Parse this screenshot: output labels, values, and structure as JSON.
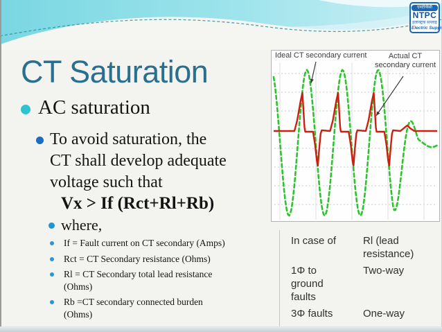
{
  "logo": {
    "hindi_name": "एनटीपीसी",
    "name": "NTPC",
    "hindi_tagline": "इलेक्ट्रिक सप्लाई",
    "tagline": "Electric Supply"
  },
  "title": "CT Saturation",
  "bullets": {
    "level1": "AC saturation",
    "level2": "To avoid saturation, the\nCT shall develop adequate\nvoltage such that",
    "formula": "Vx > If (Rct+Rl+Rb)",
    "where_label": "where,",
    "definitions": [
      "If = Fault current on CT secondary (Amps)",
      "Rct = CT Secondary resistance (Ohms)",
      "Rl = CT Secondary total lead resistance\n(Ohms)",
      "Rb =CT secondary connected burden\n(Ohms)"
    ]
  },
  "chart_data": {
    "type": "line",
    "title": "",
    "xlabel": "",
    "ylabel": "",
    "description": "Qualitative waveform comparison: ideal CT secondary current is a symmetric decaying sine; actual CT secondary current collapses to zero after short spikes due to CT saturation. No numeric axes shown; coordinates are plot pixels (242x246).",
    "units": "px",
    "zero_line_y": 115,
    "grid": {
      "h_dotted_y": [
        33,
        60,
        87,
        141,
        168,
        195,
        222
      ],
      "v_solid_x": [
        12,
        64,
        116,
        168,
        220
      ]
    },
    "series": [
      {
        "name": "Ideal CT secondary current",
        "color": "#2cc32c",
        "style": "dashed",
        "shape": "sine",
        "amplitude": 105,
        "dc_offset": 18,
        "period": 51.5,
        "rising_zero_x": 38,
        "decay_start_x": 176,
        "decay_end_x": 212,
        "decay_final": 0.06,
        "x_range": [
          3,
          239
        ]
      },
      {
        "name": "Actual CT secondary current",
        "color": "#cc1f10",
        "style": "solid",
        "shape": "saturated-spikes",
        "baseline": 116,
        "up_spikes_x": [
          38,
          89.5,
          141
        ],
        "up_peak": 61,
        "down_spikes_x": [
          63.75,
          115.25,
          166.75
        ],
        "down_peak": 166,
        "end_ripple": {
          "from": 186,
          "to": 206,
          "peak_y": 108
        },
        "x_range": [
          3,
          239
        ]
      }
    ],
    "annotations": [
      {
        "text": "Ideal CT secondary current"
      },
      {
        "text": "Actual CT\nsecondary current"
      }
    ],
    "arrows": [
      {
        "from": [
          64,
          16
        ],
        "to": [
          57,
          47
        ]
      },
      {
        "from": [
          190,
          37
        ],
        "to": [
          151,
          94
        ]
      }
    ],
    "legend": "annotated labels with arrows, top of plot"
  },
  "table": {
    "header": [
      "In case of",
      "Rl (lead\nresistance)"
    ],
    "rows": [
      [
        "1Φ to\nground\nfaults",
        "Two-way"
      ],
      [
        "3Φ faults",
        "One-way"
      ]
    ]
  },
  "colors": {
    "title_teal": "#2b6f8e",
    "banner_aqua": "#7fd9e4",
    "bullet_cyan": "#2ec4cf",
    "bullet_blue": "#1c6dc2",
    "bullet_lightblue": "#2a97d4",
    "ideal_green": "#2cc32c",
    "actual_red": "#cc1f10",
    "logo_blue": "#1b67b2"
  }
}
